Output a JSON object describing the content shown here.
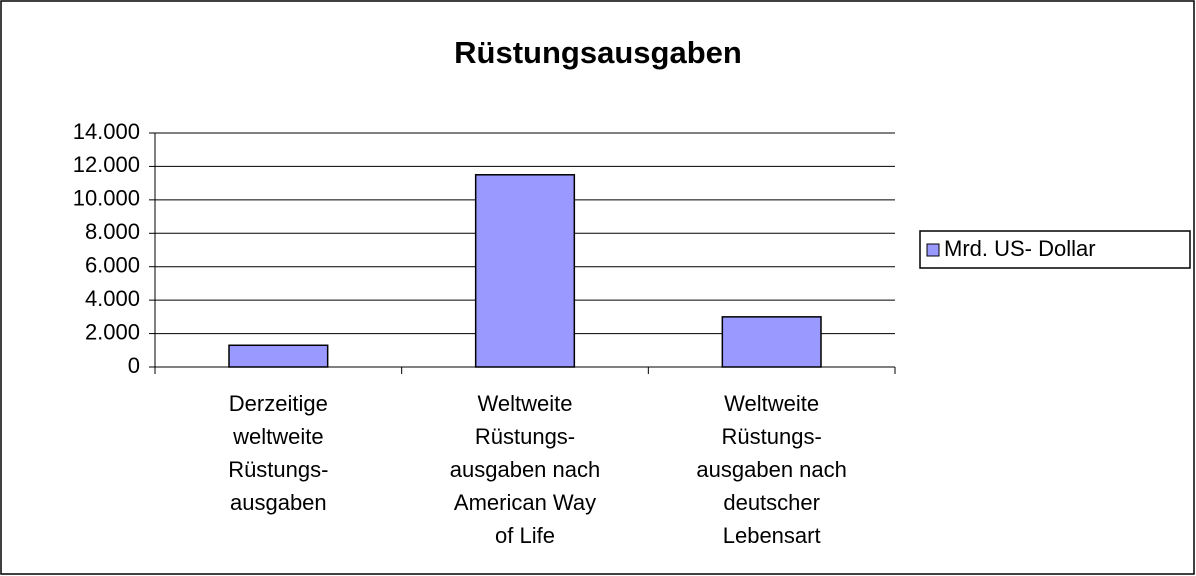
{
  "chart_data": {
    "type": "bar",
    "title": "Rüstungsausgaben",
    "categories": [
      "Derzeitige\nweltweite\nRüstungs-\nausgaben",
      "Weltweite\nRüstungs-\nausgaben nach\nAmerican Way\nof Life",
      "Weltweite\nRüstungs-\nausgaben nach\ndeutscher\nLebensart"
    ],
    "series": [
      {
        "name": "Mrd. US- Dollar",
        "color": "#9999ff",
        "values": [
          1300,
          11500,
          3000
        ]
      }
    ],
    "ylim": [
      0,
      14000
    ],
    "yticks": [
      0,
      {
        "value": 2000,
        "label": "2.000"
      },
      {
        "value": 4000,
        "label": "4.000"
      },
      {
        "value": 6000,
        "label": "6.000"
      },
      {
        "value": 8000,
        "label": "8.000"
      },
      {
        "value": 10000,
        "label": "10.000"
      },
      {
        "value": 12000,
        "label": "12.000"
      },
      {
        "value": 14000,
        "label": "14.000"
      }
    ],
    "grid": true,
    "legend": "right"
  }
}
